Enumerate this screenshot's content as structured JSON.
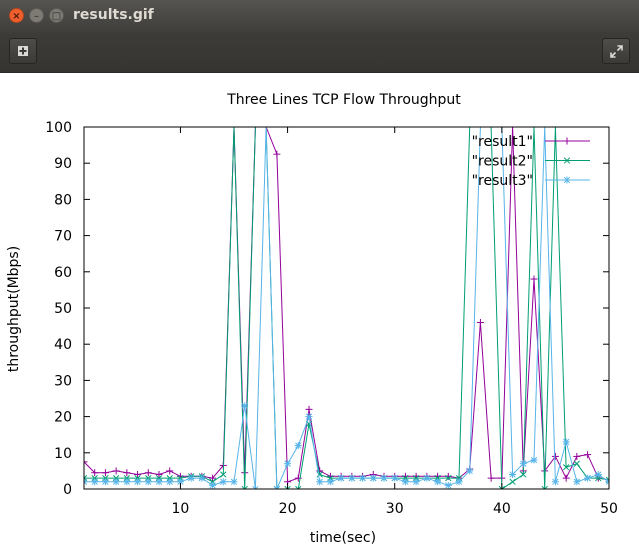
{
  "window": {
    "title": "results.gif",
    "close_glyph": "×",
    "minimize_glyph": "–",
    "maximize_glyph": "□",
    "icons": {
      "add": "add-icon",
      "fullscreen": "fullscreen-icon"
    }
  },
  "chart_data": {
    "type": "line",
    "title": "Three Lines TCP Flow Throughput",
    "xlabel": "time(sec)",
    "ylabel": "throughput(Mbps)",
    "xlim": [
      1,
      50
    ],
    "ylim": [
      0,
      100
    ],
    "xticks": [
      10,
      20,
      30,
      40,
      50
    ],
    "yticks": [
      0,
      10,
      20,
      30,
      40,
      50,
      60,
      70,
      80,
      90,
      100
    ],
    "grid": false,
    "legend_position": "top-right",
    "series": [
      {
        "name": "\"result1\"",
        "color": "#94009a",
        "marker": "plus",
        "x": [
          1,
          2,
          3,
          4,
          5,
          6,
          7,
          8,
          9,
          10,
          11,
          12,
          13,
          14,
          15,
          16,
          17,
          18,
          19,
          20,
          21,
          22,
          23,
          24,
          25,
          26,
          27,
          28,
          29,
          30,
          31,
          32,
          33,
          34,
          35,
          36,
          37,
          38,
          39,
          40,
          41,
          42,
          43,
          44,
          45,
          46,
          47,
          48,
          49,
          50
        ],
        "values": [
          7.5,
          4.5,
          4.5,
          5,
          4.5,
          4,
          4.5,
          4,
          5,
          3.5,
          3.5,
          3.5,
          3,
          6.5,
          100,
          4.5,
          100,
          100,
          92.5,
          2,
          3,
          22,
          5,
          3.5,
          3.5,
          3.5,
          3.5,
          4,
          3.5,
          3.5,
          3.5,
          3.5,
          3.5,
          3.5,
          3.5,
          3,
          5.5,
          46,
          3,
          3,
          100,
          5,
          58,
          5,
          9,
          3,
          9,
          9.5,
          3,
          2.5
        ]
      },
      {
        "name": "\"result2\"",
        "color": "#009e73",
        "marker": "cross",
        "x": [
          1,
          2,
          3,
          4,
          5,
          6,
          7,
          8,
          9,
          10,
          11,
          12,
          13,
          14,
          15,
          16,
          17,
          18,
          19,
          20,
          21,
          22,
          23,
          24,
          25,
          26,
          27,
          28,
          29,
          30,
          31,
          32,
          33,
          34,
          35,
          36,
          37,
          38,
          39,
          40,
          41,
          42,
          43,
          44,
          45,
          46,
          47,
          48,
          49,
          50
        ],
        "values": [
          3,
          3,
          3,
          3,
          3,
          3,
          3,
          3,
          3,
          3,
          3.5,
          3.5,
          2,
          4,
          100,
          0,
          100,
          100,
          0,
          0,
          0,
          18,
          4,
          3,
          3,
          3,
          3,
          3,
          3,
          3,
          3,
          3,
          3,
          3,
          3,
          3,
          100,
          100,
          100,
          0,
          2,
          4,
          100,
          0,
          100,
          6,
          7,
          3,
          3,
          2.5
        ]
      },
      {
        "name": "\"result3\"",
        "color": "#56b4e9",
        "marker": "star",
        "x": [
          1,
          2,
          3,
          4,
          5,
          6,
          7,
          8,
          9,
          10,
          11,
          12,
          13,
          14,
          15,
          16,
          17,
          18,
          19,
          20,
          21,
          22,
          23,
          24,
          25,
          26,
          27,
          28,
          29,
          30,
          31,
          32,
          33,
          34,
          35,
          36,
          37,
          38,
          39,
          40,
          41,
          42,
          43,
          44,
          45,
          46,
          47,
          48,
          49,
          50
        ],
        "values": [
          2,
          2,
          2,
          2,
          2,
          2,
          2,
          2,
          2,
          2,
          3,
          3,
          1,
          2,
          2,
          23,
          0,
          100,
          0,
          7,
          12,
          20,
          2,
          2,
          3,
          3,
          3,
          3,
          3,
          3,
          2,
          2,
          3,
          2,
          1,
          2,
          5,
          100,
          100,
          100,
          4,
          7,
          8,
          100,
          2,
          13,
          2,
          3,
          4,
          2
        ]
      }
    ]
  }
}
